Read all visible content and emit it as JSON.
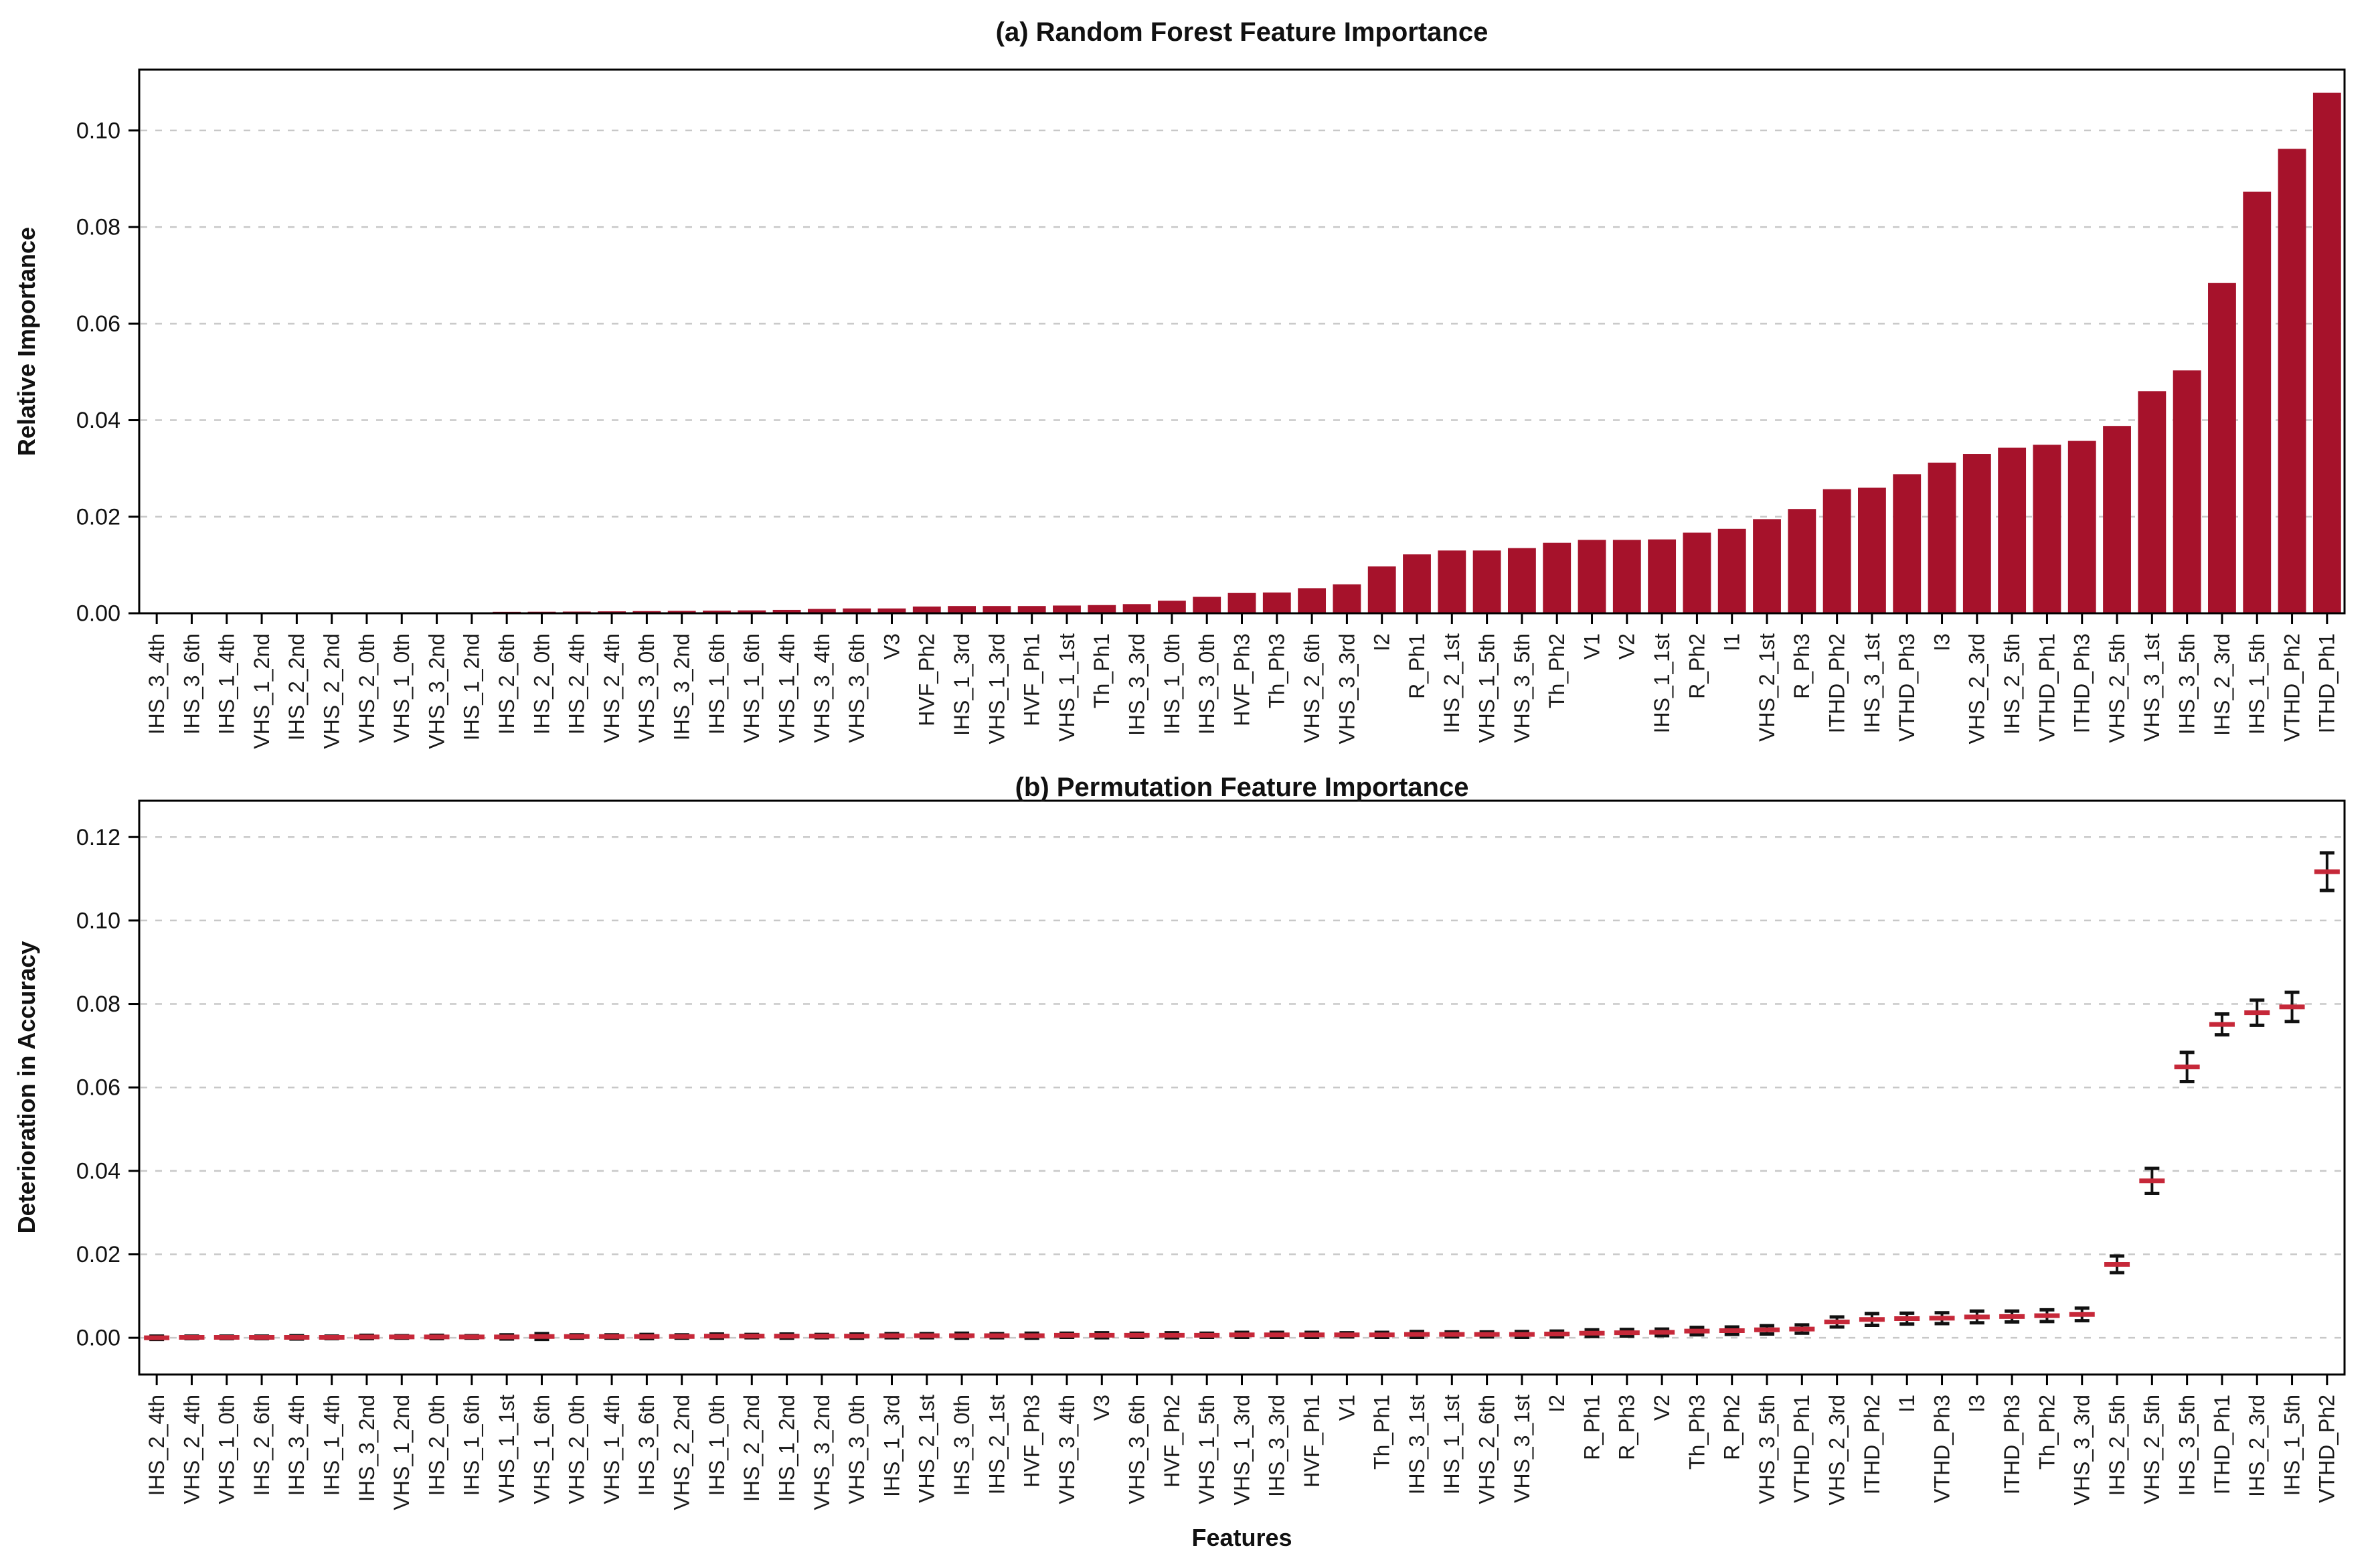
{
  "figure": {
    "xlabel": "Features"
  },
  "chart_data": [
    {
      "type": "bar",
      "name": "random-forest-feature-importance",
      "title": "(a) Random Forest Feature Importance",
      "ylabel": "Relative Importance",
      "xlabel": "",
      "ylim": [
        0,
        0.1126
      ],
      "grid": true,
      "legend": "none",
      "bar_color": "#A6122B",
      "yticks": [
        0,
        0.02,
        0.04,
        0.06,
        0.08,
        0.1
      ],
      "ytick_labels": [
        "0.00",
        "0.02",
        "0.04",
        "0.06",
        "0.08",
        "0.10"
      ],
      "categories": [
        "IHS_3_4th",
        "IHS_3_6th",
        "IHS_1_4th",
        "VHS_1_2nd",
        "IHS_2_2nd",
        "VHS_2_2nd",
        "VHS_2_0th",
        "VHS_1_0th",
        "VHS_3_2nd",
        "IHS_1_2nd",
        "IHS_2_6th",
        "IHS_2_0th",
        "IHS_2_4th",
        "VHS_2_4th",
        "VHS_3_0th",
        "IHS_3_2nd",
        "IHS_1_6th",
        "VHS_1_6th",
        "VHS_1_4th",
        "VHS_3_4th",
        "VHS_3_6th",
        "V3",
        "HVF_Ph2",
        "IHS_1_3rd",
        "VHS_1_3rd",
        "HVF_Ph1",
        "VHS_1_1st",
        "Th_Ph1",
        "IHS_3_3rd",
        "IHS_1_0th",
        "IHS_3_0th",
        "HVF_Ph3",
        "Th_Ph3",
        "VHS_2_6th",
        "VHS_3_3rd",
        "I2",
        "R_Ph1",
        "IHS_2_1st",
        "VHS_1_5th",
        "VHS_3_5th",
        "Th_Ph2",
        "V1",
        "V2",
        "IHS_1_1st",
        "R_Ph2",
        "I1",
        "VHS_2_1st",
        "R_Ph3",
        "ITHD_Ph2",
        "IHS_3_1st",
        "VTHD_Ph3",
        "I3",
        "VHS_2_3rd",
        "IHS_2_5th",
        "VTHD_Ph1",
        "ITHD_Ph3",
        "VHS_2_5th",
        "VHS_3_1st",
        "IHS_3_5th",
        "IHS_2_3rd",
        "IHS_1_5th",
        "VTHD_Ph2",
        "ITHD_Ph1"
      ],
      "values": [
        5e-05,
        6e-05,
        8e-05,
        0.0001,
        0.0001,
        0.00012,
        0.00014,
        0.00016,
        0.00018,
        0.0002,
        0.0003,
        0.00032,
        0.00035,
        0.0004,
        0.00045,
        0.0005,
        0.00055,
        0.0006,
        0.0007,
        0.0009,
        0.001,
        0.001,
        0.0014,
        0.0015,
        0.0015,
        0.0015,
        0.0016,
        0.0017,
        0.0019,
        0.0026,
        0.0034,
        0.0042,
        0.0043,
        0.0052,
        0.006,
        0.0097,
        0.0122,
        0.013,
        0.013,
        0.0135,
        0.0146,
        0.0152,
        0.0152,
        0.0153,
        0.0167,
        0.0175,
        0.0195,
        0.0216,
        0.0257,
        0.026,
        0.0288,
        0.0312,
        0.033,
        0.0343,
        0.0349,
        0.0357,
        0.0388,
        0.046,
        0.0503,
        0.0684,
        0.0873,
        0.0962,
        0.1078
      ]
    },
    {
      "type": "scatter-errorbar",
      "name": "permutation-feature-importance",
      "title": "(b) Permutation Feature Importance",
      "ylabel": "Deterioration in Accuracy",
      "xlabel": "Features",
      "ylim": [
        -0.0088,
        0.1287
      ],
      "grid": true,
      "legend": "none",
      "marker_color": "#C62839",
      "whisker_color": "#111111",
      "yticks": [
        0,
        0.02,
        0.04,
        0.06,
        0.08,
        0.1,
        0.12
      ],
      "ytick_labels": [
        "0.00",
        "0.02",
        "0.04",
        "0.06",
        "0.08",
        "0.10",
        "0.12"
      ],
      "categories": [
        "IHS_2_4th",
        "VHS_2_4th",
        "VHS_1_0th",
        "IHS_2_6th",
        "IHS_3_4th",
        "IHS_1_4th",
        "IHS_3_2nd",
        "VHS_1_2nd",
        "IHS_2_0th",
        "IHS_1_6th",
        "VHS_1_1st",
        "VHS_1_6th",
        "VHS_2_0th",
        "VHS_1_4th",
        "IHS_3_6th",
        "VHS_2_2nd",
        "IHS_1_0th",
        "IHS_2_2nd",
        "IHS_1_2nd",
        "VHS_3_2nd",
        "VHS_3_0th",
        "IHS_1_3rd",
        "VHS_2_1st",
        "IHS_3_0th",
        "IHS_2_1st",
        "HVF_Ph3",
        "VHS_3_4th",
        "V3",
        "VHS_3_6th",
        "HVF_Ph2",
        "VHS_1_5th",
        "VHS_1_3rd",
        "IHS_3_3rd",
        "HVF_Ph1",
        "V1",
        "Th_Ph1",
        "IHS_3_1st",
        "IHS_1_1st",
        "VHS_2_6th",
        "VHS_3_1st",
        "I2",
        "R_Ph1",
        "R_Ph3",
        "V2",
        "Th_Ph3",
        "R_Ph2",
        "VHS_3_5th",
        "VTHD_Ph1",
        "VHS_2_3rd",
        "ITHD_Ph2",
        "I1",
        "VTHD_Ph3",
        "I3",
        "ITHD_Ph3",
        "Th_Ph2",
        "VHS_3_3rd",
        "IHS_2_5th",
        "VHS_2_5th",
        "IHS_3_5th",
        "ITHD_Ph1",
        "IHS_2_3rd",
        "IHS_1_5th",
        "VTHD_Ph2"
      ],
      "values": [
        0.0,
        0.0001,
        0.0001,
        0.0001,
        0.0001,
        0.0001,
        0.0002,
        0.0002,
        0.0002,
        0.0002,
        0.0002,
        0.0003,
        0.0003,
        0.0003,
        0.0003,
        0.0003,
        0.0004,
        0.0004,
        0.0004,
        0.0004,
        0.0004,
        0.0005,
        0.0005,
        0.0005,
        0.0005,
        0.0005,
        0.0006,
        0.0006,
        0.0006,
        0.0006,
        0.0006,
        0.0007,
        0.0007,
        0.0007,
        0.0007,
        0.0007,
        0.0008,
        0.0008,
        0.0008,
        0.0008,
        0.0009,
        0.0011,
        0.0012,
        0.0013,
        0.0016,
        0.0017,
        0.0019,
        0.0021,
        0.0038,
        0.0044,
        0.0046,
        0.0047,
        0.005,
        0.0051,
        0.0053,
        0.0056,
        0.0176,
        0.0376,
        0.0649,
        0.0751,
        0.0779,
        0.0793,
        0.1117
      ],
      "errors": [
        0.0004,
        0.0003,
        0.0003,
        0.0003,
        0.0004,
        0.0003,
        0.0004,
        0.0003,
        0.0004,
        0.0003,
        0.0005,
        0.0007,
        0.0004,
        0.0004,
        0.0005,
        0.0004,
        0.0005,
        0.0004,
        0.0005,
        0.0004,
        0.0005,
        0.0005,
        0.0005,
        0.0006,
        0.0005,
        0.0006,
        0.0005,
        0.0006,
        0.0005,
        0.0006,
        0.0005,
        0.0006,
        0.0006,
        0.0006,
        0.0005,
        0.0006,
        0.0007,
        0.0006,
        0.0006,
        0.0007,
        0.0007,
        0.0008,
        0.0008,
        0.0008,
        0.0009,
        0.0009,
        0.001,
        0.001,
        0.0012,
        0.0014,
        0.0013,
        0.0013,
        0.0014,
        0.0013,
        0.0014,
        0.0015,
        0.002,
        0.003,
        0.0035,
        0.0025,
        0.003,
        0.0035,
        0.0045
      ]
    }
  ]
}
